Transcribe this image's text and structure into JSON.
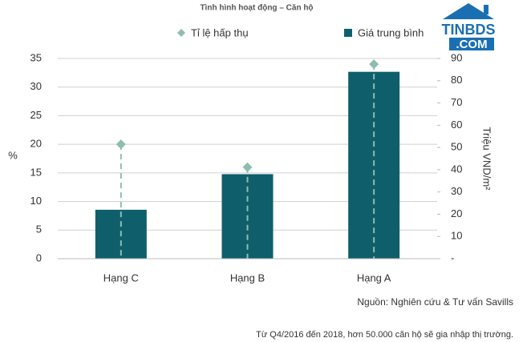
{
  "chart_data": {
    "type": "bar",
    "title": "Tình hình hoạt động – Căn hộ",
    "categories": [
      "Hạng C",
      "Hạng B",
      "Hạng A"
    ],
    "series": [
      {
        "name": "Tỉ lệ hấp thụ",
        "type": "scatter",
        "marker": "diamond",
        "color": "#8dbdb1",
        "axis": "y",
        "values": [
          20,
          16,
          34
        ]
      },
      {
        "name": "Giá trung bình",
        "type": "bar",
        "marker": "square",
        "color": "#0e5f6b",
        "axis": "y2",
        "values": [
          22,
          38,
          84
        ]
      }
    ],
    "ylabel": "%",
    "y2label": "Triệu VND/m²",
    "ylim": [
      0,
      35
    ],
    "yticks": [
      0,
      5,
      10,
      15,
      20,
      25,
      30,
      35
    ],
    "y2lim": [
      0,
      90
    ],
    "y2ticks": [
      {
        "value": 0,
        "label": "-"
      },
      10,
      20,
      30,
      40,
      50,
      60,
      70,
      80,
      90
    ],
    "grid": true,
    "source": "Nguồn: Nghiên cứu & Tư vấn Savills",
    "footnote": "Từ Q4/2016 đến 2018, hơn 50.000 căn hộ sẽ gia nhập thị trường."
  },
  "logo": {
    "name": "TINBDS",
    "domain": ".COM"
  }
}
